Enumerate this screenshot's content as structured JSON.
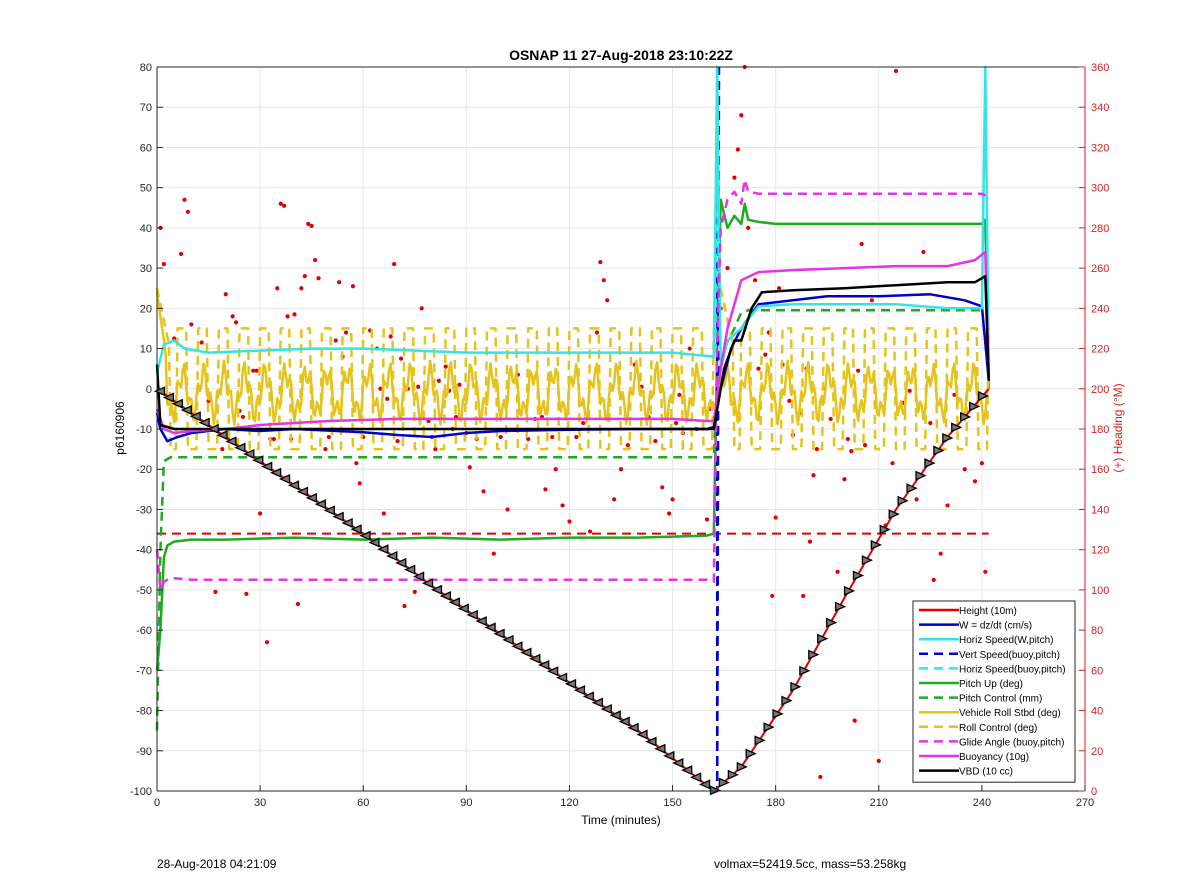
{
  "footer": {
    "timestamp": "28-Aug-2018 04:21:09",
    "volmax_mass": "volmax=52419.5cc, mass=53.258kg"
  },
  "chart_data": {
    "type": "line",
    "title": "OSNAP 11 27-Aug-2018 23:10:22Z",
    "xlabel": "Time (minutes)",
    "ylabel_left": "p6160906",
    "ylabel_right": "(+) Heading (°M)",
    "xlim": [
      0,
      270
    ],
    "ylim_left": [
      -100,
      80
    ],
    "ylim_right": [
      0,
      360
    ],
    "x_ticks": [
      0,
      30,
      60,
      90,
      120,
      150,
      180,
      210,
      240,
      270
    ],
    "y_ticks_left": [
      -100,
      -90,
      -80,
      -70,
      -60,
      -50,
      -40,
      -30,
      -20,
      -10,
      0,
      10,
      20,
      30,
      40,
      50,
      60,
      70,
      80
    ],
    "y_ticks_right": [
      0,
      20,
      40,
      60,
      80,
      100,
      120,
      140,
      160,
      180,
      200,
      220,
      240,
      260,
      280,
      300,
      320,
      340,
      360
    ],
    "grid": true,
    "legend_position": "bottom-right",
    "colors": {
      "red": "#e00000",
      "blue": "#0000cc",
      "cyan": "#33e5e5",
      "green": "#1faa1f",
      "gold": "#e6c31a",
      "magenta": "#e633e6",
      "black": "#000000",
      "right_axis": "#d42020"
    },
    "series": [
      {
        "name": "Height (10m)",
        "color": "red",
        "dash": false,
        "x": [
          0,
          20,
          40,
          60,
          80,
          100,
          120,
          140,
          162,
          170,
          185,
          200,
          215,
          230,
          242
        ],
        "y": [
          0,
          -12,
          -24,
          -36,
          -49,
          -61,
          -73,
          -85,
          -100,
          -94,
          -75,
          -52,
          -30,
          -12,
          0
        ]
      },
      {
        "name": "W = dz/dt (cm/s)",
        "color": "blue",
        "dash": false,
        "x": [
          0,
          1,
          3,
          6,
          10,
          20,
          30,
          40,
          60,
          70,
          80,
          90,
          100,
          120,
          140,
          160,
          162,
          164,
          167,
          170,
          175,
          185,
          195,
          210,
          225,
          235,
          240,
          242
        ],
        "y": [
          -6,
          -10,
          -13,
          -12,
          -11,
          -10,
          -10.5,
          -10,
          -10.8,
          -11.5,
          -12,
          -11,
          -10.5,
          -10.2,
          -10,
          -10,
          -9.5,
          0,
          10,
          15,
          21,
          22,
          23,
          23,
          23.5,
          22,
          20.5,
          2
        ]
      },
      {
        "name": "Horiz Speed(W,pitch)",
        "color": "cyan",
        "dash": false,
        "x": [
          0,
          2,
          5,
          8,
          15,
          30,
          45,
          60,
          90,
          120,
          150,
          162,
          163,
          164,
          166,
          170,
          175,
          185,
          200,
          215,
          230,
          240,
          241,
          242
        ],
        "y": [
          4,
          11,
          12,
          10,
          9,
          9.5,
          10,
          10,
          9,
          9,
          9,
          8,
          80,
          5,
          12,
          15,
          20.5,
          21,
          21,
          21,
          20,
          20,
          80,
          2
        ]
      },
      {
        "name": "Vert Speed(buoy,pitch)",
        "color": "blue",
        "dash": true,
        "x": [
          163,
          163,
          163.5
        ],
        "y": [
          80,
          -100,
          80
        ]
      },
      {
        "name": "Horiz Speed(buoy,pitch)",
        "color": "cyan",
        "dash": true,
        "x": [
          162.5,
          163,
          163.5
        ],
        "y": [
          9,
          80,
          20
        ]
      },
      {
        "name": "Pitch Up (deg)",
        "color": "green",
        "dash": false,
        "x": [
          0,
          1,
          2,
          3,
          5,
          10,
          20,
          40,
          60,
          80,
          100,
          120,
          140,
          160,
          162,
          163,
          164,
          166,
          168,
          170,
          171,
          172,
          175,
          180,
          200,
          220,
          240,
          241,
          242
        ],
        "y": [
          -70,
          -60,
          -42,
          -39,
          -38,
          -37.5,
          -37.5,
          -37,
          -37.5,
          -37,
          -37.5,
          -37,
          -37,
          -36.5,
          -36,
          10,
          47,
          40,
          43,
          41,
          46,
          42,
          41.5,
          41,
          41,
          41,
          41,
          42,
          0
        ]
      },
      {
        "name": "Pitch Control (mm)",
        "color": "green",
        "dash": true,
        "x": [
          0,
          1,
          2,
          4,
          30,
          60,
          90,
          120,
          150,
          162,
          163,
          165,
          168,
          170,
          172,
          180,
          200,
          220,
          240,
          241
        ],
        "y": [
          -85,
          -40,
          -18,
          -17,
          -17,
          -17,
          -17,
          -17,
          -17,
          -17,
          0,
          10,
          15,
          19,
          19.5,
          19.5,
          19.5,
          19.5,
          19.5,
          19.5
        ]
      },
      {
        "name": "Vehicle Roll Stbd (deg)",
        "color": "gold",
        "dash": false,
        "x": [
          0,
          162,
          164,
          242
        ],
        "y": [
          0,
          0,
          0,
          0
        ]
      },
      {
        "name": "Roll Control (deg)",
        "color": "gold",
        "dash": true,
        "x": [
          0,
          162,
          164,
          242
        ],
        "y": [
          0,
          0,
          0,
          0
        ]
      },
      {
        "name": "Glide Angle (buoy,pitch)",
        "color": "magenta",
        "dash": true,
        "x": [
          0,
          1,
          2,
          4,
          10,
          30,
          50,
          70,
          90,
          110,
          130,
          150,
          160,
          162,
          163,
          164,
          166,
          168,
          170,
          171,
          172,
          175,
          190,
          210,
          230,
          240,
          241
        ],
        "y": [
          -40,
          -50,
          -48,
          -47,
          -47.5,
          -47.5,
          -47.5,
          -47.5,
          -47.5,
          -47.5,
          -47.5,
          -47.5,
          -47.5,
          -48,
          10,
          40,
          47,
          49,
          46,
          52,
          49,
          48.5,
          48.5,
          48.5,
          48.5,
          48.5,
          48
        ]
      },
      {
        "name": "Buoyancy (10g)",
        "color": "magenta",
        "dash": false,
        "x": [
          0,
          2,
          5,
          10,
          20,
          30,
          50,
          70,
          90,
          110,
          130,
          150,
          160,
          162,
          164,
          166,
          170,
          175,
          185,
          200,
          215,
          230,
          238,
          241,
          242
        ],
        "y": [
          -5,
          -10,
          -11,
          -10.5,
          -10,
          -9,
          -8,
          -7.5,
          -7.5,
          -7.5,
          -7.5,
          -7.5,
          -8,
          -8,
          5,
          15,
          27,
          29,
          29.5,
          30,
          30.5,
          30.5,
          32,
          34,
          2
        ]
      },
      {
        "name": "VBD (10 cc)",
        "color": "black",
        "dash": false,
        "x": [
          0,
          1,
          5,
          20,
          40,
          60,
          80,
          100,
          120,
          140,
          160,
          162,
          163,
          165,
          168,
          170,
          173,
          176,
          185,
          200,
          220,
          230,
          238,
          241,
          242
        ],
        "y": [
          6,
          -9,
          -10,
          -10,
          -10,
          -10,
          -10,
          -10,
          -10,
          -10,
          -10,
          -10,
          -5,
          5,
          12,
          12,
          20,
          24,
          24.5,
          25,
          26,
          26.5,
          26.5,
          28,
          2
        ]
      }
    ],
    "heading_dashed": {
      "color": "red",
      "x": [
        0,
        242
      ],
      "y_right": [
        128,
        128
      ]
    },
    "heading_points_right_axis": [
      [
        1,
        280
      ],
      [
        2,
        262
      ],
      [
        5,
        225
      ],
      [
        7,
        267
      ],
      [
        8,
        294
      ],
      [
        9,
        288
      ],
      [
        10,
        232
      ],
      [
        13,
        223
      ],
      [
        15,
        194
      ],
      [
        17,
        99
      ],
      [
        19,
        170
      ],
      [
        20,
        247
      ],
      [
        22,
        236
      ],
      [
        23,
        233
      ],
      [
        24,
        189
      ],
      [
        25,
        186
      ],
      [
        26,
        98
      ],
      [
        28,
        209
      ],
      [
        29,
        209
      ],
      [
        30,
        138
      ],
      [
        32,
        74
      ],
      [
        33,
        175
      ],
      [
        34,
        175
      ],
      [
        35,
        250
      ],
      [
        36,
        292
      ],
      [
        37,
        291
      ],
      [
        38,
        236
      ],
      [
        39,
        175
      ],
      [
        40,
        237
      ],
      [
        41,
        93
      ],
      [
        42,
        250
      ],
      [
        43,
        256
      ],
      [
        44,
        282
      ],
      [
        45,
        281
      ],
      [
        46,
        264
      ],
      [
        47,
        255
      ],
      [
        49,
        170
      ],
      [
        50,
        176
      ],
      [
        52,
        224
      ],
      [
        53,
        253
      ],
      [
        54,
        216
      ],
      [
        55,
        228
      ],
      [
        57,
        251
      ],
      [
        58,
        163
      ],
      [
        59,
        153
      ],
      [
        60,
        176
      ],
      [
        62,
        229
      ],
      [
        64,
        220
      ],
      [
        65,
        200
      ],
      [
        66,
        138
      ],
      [
        67,
        195
      ],
      [
        68,
        226
      ],
      [
        69,
        262
      ],
      [
        70,
        174
      ],
      [
        71,
        215
      ],
      [
        72,
        92
      ],
      [
        73,
        200
      ],
      [
        75,
        99
      ],
      [
        76,
        201
      ],
      [
        77,
        240
      ],
      [
        79,
        184
      ],
      [
        80,
        176
      ],
      [
        81,
        170
      ],
      [
        82,
        204
      ],
      [
        84,
        211
      ],
      [
        85,
        199
      ],
      [
        86,
        180
      ],
      [
        87,
        186
      ],
      [
        88,
        202
      ],
      [
        90,
        178
      ],
      [
        91,
        161
      ],
      [
        93,
        175
      ],
      [
        95,
        149
      ],
      [
        98,
        118
      ],
      [
        100,
        176
      ],
      [
        102,
        140
      ],
      [
        105,
        207
      ],
      [
        108,
        175
      ],
      [
        110,
        185
      ],
      [
        112,
        186
      ],
      [
        113,
        150
      ],
      [
        115,
        176
      ],
      [
        116,
        160
      ],
      [
        118,
        142
      ],
      [
        120,
        134
      ],
      [
        122,
        176
      ],
      [
        124,
        183
      ],
      [
        126,
        129
      ],
      [
        128,
        228
      ],
      [
        129,
        263
      ],
      [
        130,
        254
      ],
      [
        131,
        244
      ],
      [
        133,
        145
      ],
      [
        135,
        160
      ],
      [
        137,
        172
      ],
      [
        139,
        212
      ],
      [
        141,
        201
      ],
      [
        143,
        186
      ],
      [
        145,
        174
      ],
      [
        147,
        151
      ],
      [
        149,
        138
      ],
      [
        150,
        145
      ],
      [
        151,
        183
      ],
      [
        152,
        197
      ],
      [
        153,
        178
      ],
      [
        155,
        220
      ],
      [
        157,
        180
      ],
      [
        160,
        135
      ],
      [
        161,
        190
      ],
      [
        164,
        240
      ],
      [
        166,
        260
      ],
      [
        168,
        305
      ],
      [
        169,
        319
      ],
      [
        170,
        336
      ],
      [
        171,
        360
      ],
      [
        172,
        280
      ],
      [
        174,
        254
      ],
      [
        175,
        210
      ],
      [
        177,
        217
      ],
      [
        178,
        228
      ],
      [
        179,
        97
      ],
      [
        180,
        136
      ],
      [
        181,
        250
      ],
      [
        182,
        212
      ],
      [
        184,
        194
      ],
      [
        185,
        177
      ],
      [
        187,
        188
      ],
      [
        188,
        97
      ],
      [
        189,
        210
      ],
      [
        190,
        124
      ],
      [
        191,
        157
      ],
      [
        192,
        170
      ],
      [
        193,
        7
      ],
      [
        194,
        200
      ],
      [
        196,
        185
      ],
      [
        198,
        109
      ],
      [
        200,
        155
      ],
      [
        201,
        175
      ],
      [
        202,
        169
      ],
      [
        203,
        35
      ],
      [
        204,
        209
      ],
      [
        205,
        272
      ],
      [
        206,
        172
      ],
      [
        208,
        244
      ],
      [
        210,
        15
      ],
      [
        212,
        132
      ],
      [
        214,
        163
      ],
      [
        215,
        358
      ],
      [
        217,
        193
      ],
      [
        219,
        199
      ],
      [
        221,
        145
      ],
      [
        223,
        268
      ],
      [
        225,
        183
      ],
      [
        226,
        105
      ],
      [
        228,
        118
      ],
      [
        230,
        142
      ],
      [
        232,
        197
      ],
      [
        235,
        160
      ],
      [
        238,
        154
      ],
      [
        240,
        163
      ],
      [
        241,
        109
      ]
    ]
  }
}
